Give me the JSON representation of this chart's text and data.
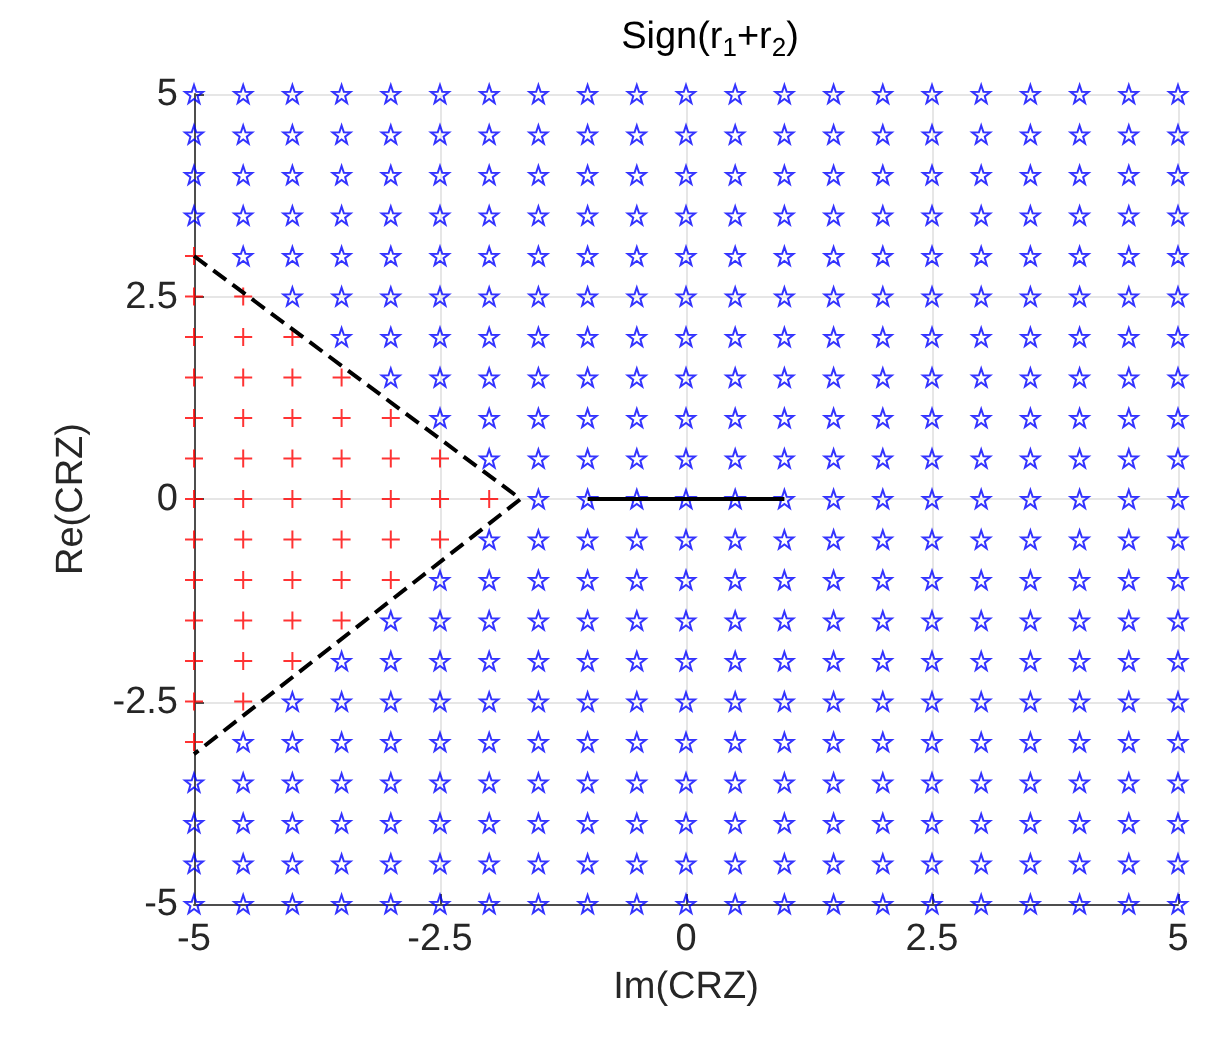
{
  "chart_data": {
    "type": "scatter",
    "title": "Sign(r$_{1}$+r$_{2}$)",
    "xlabel": "Im(CRZ)",
    "ylabel": "Re(CRZ)",
    "xlim": [
      -5,
      5
    ],
    "ylim": [
      -5,
      5
    ],
    "xticks": [
      -5,
      -2.5,
      0,
      2.5,
      5
    ],
    "yticks": [
      -5,
      -2.5,
      0,
      2.5,
      5
    ],
    "grid": true,
    "series": [
      {
        "color": "#0000ff",
        "marker": "star",
        "x": [
          -5,
          -4.5,
          -4,
          -3.5,
          -3,
          -2.5,
          -2,
          -1.5,
          -1,
          -0.5,
          0,
          0.5,
          1,
          1.5,
          2,
          2.5,
          3,
          3.5,
          4,
          4.5,
          5,
          -5,
          -4.5,
          -4,
          -3.5,
          -3,
          -2.5,
          -2,
          -1.5,
          -1,
          -0.5,
          0,
          0.5,
          1,
          1.5,
          2,
          2.5,
          3,
          3.5,
          4,
          4.5,
          5,
          -5,
          -4.5,
          -4,
          -3.5,
          -3,
          -2.5,
          -2,
          -1.5,
          -1,
          -0.5,
          0,
          0.5,
          1,
          1.5,
          2,
          2.5,
          3,
          3.5,
          4,
          4.5,
          5,
          -5,
          -4.5,
          -4,
          -3.5,
          -3,
          -2.5,
          -2,
          -1.5,
          -1,
          -0.5,
          0,
          0.5,
          1,
          1.5,
          2,
          2.5,
          3,
          3.5,
          4,
          4.5,
          5,
          -4.5,
          -4,
          -3.5,
          -3,
          -2.5,
          -2,
          -1.5,
          -1,
          -0.5,
          0,
          0.5,
          1,
          1.5,
          2,
          2.5,
          3,
          3.5,
          4,
          4.5,
          5,
          -4,
          -3.5,
          -3,
          -2.5,
          -2,
          -1.5,
          -1,
          -0.5,
          0,
          0.5,
          1,
          1.5,
          2,
          2.5,
          3,
          3.5,
          4,
          4.5,
          5,
          -3.5,
          -3,
          -2.5,
          -2,
          -1.5,
          -1,
          -0.5,
          0,
          0.5,
          1,
          1.5,
          2,
          2.5,
          3,
          3.5,
          4,
          4.5,
          5,
          -3,
          -2.5,
          -2,
          -1.5,
          -1,
          -0.5,
          0,
          0.5,
          1,
          1.5,
          2,
          2.5,
          3,
          3.5,
          4,
          4.5,
          5,
          -2.5,
          -2,
          -1.5,
          -1,
          -0.5,
          0,
          0.5,
          1,
          1.5,
          2,
          2.5,
          3,
          3.5,
          4,
          4.5,
          5,
          -2,
          -1.5,
          -1,
          -0.5,
          0,
          0.5,
          1,
          1.5,
          2,
          2.5,
          3,
          3.5,
          4,
          4.5,
          5,
          -1.5,
          -1,
          -0.5,
          0,
          0.5,
          1,
          1.5,
          2,
          2.5,
          3,
          3.5,
          4,
          4.5,
          5,
          -2,
          -1.5,
          -1,
          -0.5,
          0,
          0.5,
          1,
          1.5,
          2,
          2.5,
          3,
          3.5,
          4,
          4.5,
          5,
          -2.5,
          -2,
          -1.5,
          -1,
          -0.5,
          0,
          0.5,
          1,
          1.5,
          2,
          2.5,
          3,
          3.5,
          4,
          4.5,
          5,
          -3,
          -2.5,
          -2,
          -1.5,
          -1,
          -0.5,
          0,
          0.5,
          1,
          1.5,
          2,
          2.5,
          3,
          3.5,
          4,
          4.5,
          5,
          -3.5,
          -3,
          -2.5,
          -2,
          -1.5,
          -1,
          -0.5,
          0,
          0.5,
          1,
          1.5,
          2,
          2.5,
          3,
          3.5,
          4,
          4.5,
          5,
          -4,
          -3.5,
          -3,
          -2.5,
          -2,
          -1.5,
          -1,
          -0.5,
          0,
          0.5,
          1,
          1.5,
          2,
          2.5,
          3,
          3.5,
          4,
          4.5,
          5,
          -4.5,
          -4,
          -3.5,
          -3,
          -2.5,
          -2,
          -1.5,
          -1,
          -0.5,
          0,
          0.5,
          1,
          1.5,
          2,
          2.5,
          3,
          3.5,
          4,
          4.5,
          5,
          -5,
          -4.5,
          -4,
          -3.5,
          -3,
          -2.5,
          -2,
          -1.5,
          -1,
          -0.5,
          0,
          0.5,
          1,
          1.5,
          2,
          2.5,
          3,
          3.5,
          4,
          4.5,
          5,
          -5,
          -4.5,
          -4,
          -3.5,
          -3,
          -2.5,
          -2,
          -1.5,
          -1,
          -0.5,
          0,
          0.5,
          1,
          1.5,
          2,
          2.5,
          3,
          3.5,
          4,
          4.5,
          5,
          -5,
          -4.5,
          -4,
          -3.5,
          -3,
          -2.5,
          -2,
          -1.5,
          -1,
          -0.5,
          0,
          0.5,
          1,
          1.5,
          2,
          2.5,
          3,
          3.5,
          4,
          4.5,
          5,
          -5,
          -4.5,
          -4,
          -3.5,
          -3,
          -2.5,
          -2,
          -1.5,
          -1,
          -0.5,
          0,
          0.5,
          1,
          1.5,
          2,
          2.5,
          3,
          3.5,
          4,
          4.5,
          5
        ],
        "values": [
          5,
          5,
          5,
          5,
          5,
          5,
          5,
          5,
          5,
          5,
          5,
          5,
          5,
          5,
          5,
          5,
          5,
          5,
          5,
          5,
          5,
          4.5,
          4.5,
          4.5,
          4.5,
          4.5,
          4.5,
          4.5,
          4.5,
          4.5,
          4.5,
          4.5,
          4.5,
          4.5,
          4.5,
          4.5,
          4.5,
          4.5,
          4.5,
          4.5,
          4.5,
          4.5,
          4,
          4,
          4,
          4,
          4,
          4,
          4,
          4,
          4,
          4,
          4,
          4,
          4,
          4,
          4,
          4,
          4,
          4,
          4,
          4,
          4,
          3.5,
          3.5,
          3.5,
          3.5,
          3.5,
          3.5,
          3.5,
          3.5,
          3.5,
          3.5,
          3.5,
          3.5,
          3.5,
          3.5,
          3.5,
          3.5,
          3.5,
          3.5,
          3.5,
          3.5,
          3.5,
          3,
          3,
          3,
          3,
          3,
          3,
          3,
          3,
          3,
          3,
          3,
          3,
          3,
          3,
          3,
          3,
          3,
          3,
          3,
          3,
          2.5,
          2.5,
          2.5,
          2.5,
          2.5,
          2.5,
          2.5,
          2.5,
          2.5,
          2.5,
          2.5,
          2.5,
          2.5,
          2.5,
          2.5,
          2.5,
          2.5,
          2.5,
          2.5,
          2,
          2,
          2,
          2,
          2,
          2,
          2,
          2,
          2,
          2,
          2,
          2,
          2,
          2,
          2,
          2,
          2,
          2,
          1.5,
          1.5,
          1.5,
          1.5,
          1.5,
          1.5,
          1.5,
          1.5,
          1.5,
          1.5,
          1.5,
          1.5,
          1.5,
          1.5,
          1.5,
          1.5,
          1.5,
          1,
          1,
          1,
          1,
          1,
          1,
          1,
          1,
          1,
          1,
          1,
          1,
          1,
          1,
          1,
          1,
          0.5,
          0.5,
          0.5,
          0.5,
          0.5,
          0.5,
          0.5,
          0.5,
          0.5,
          0.5,
          0.5,
          0.5,
          0.5,
          0.5,
          0.5,
          0,
          0,
          0,
          0,
          0,
          0,
          0,
          0,
          0,
          0,
          0,
          0,
          0,
          0,
          -0.5,
          -0.5,
          -0.5,
          -0.5,
          -0.5,
          -0.5,
          -0.5,
          -0.5,
          -0.5,
          -0.5,
          -0.5,
          -0.5,
          -0.5,
          -0.5,
          -0.5,
          -1,
          -1,
          -1,
          -1,
          -1,
          -1,
          -1,
          -1,
          -1,
          -1,
          -1,
          -1,
          -1,
          -1,
          -1,
          -1,
          -1.5,
          -1.5,
          -1.5,
          -1.5,
          -1.5,
          -1.5,
          -1.5,
          -1.5,
          -1.5,
          -1.5,
          -1.5,
          -1.5,
          -1.5,
          -1.5,
          -1.5,
          -1.5,
          -1.5,
          -2,
          -2,
          -2,
          -2,
          -2,
          -2,
          -2,
          -2,
          -2,
          -2,
          -2,
          -2,
          -2,
          -2,
          -2,
          -2,
          -2,
          -2,
          -2.5,
          -2.5,
          -2.5,
          -2.5,
          -2.5,
          -2.5,
          -2.5,
          -2.5,
          -2.5,
          -2.5,
          -2.5,
          -2.5,
          -2.5,
          -2.5,
          -2.5,
          -2.5,
          -2.5,
          -2.5,
          -2.5,
          -3,
          -3,
          -3,
          -3,
          -3,
          -3,
          -3,
          -3,
          -3,
          -3,
          -3,
          -3,
          -3,
          -3,
          -3,
          -3,
          -3,
          -3,
          -3,
          -3,
          -3.5,
          -3.5,
          -3.5,
          -3.5,
          -3.5,
          -3.5,
          -3.5,
          -3.5,
          -3.5,
          -3.5,
          -3.5,
          -3.5,
          -3.5,
          -3.5,
          -3.5,
          -3.5,
          -3.5,
          -3.5,
          -3.5,
          -3.5,
          -3.5,
          -4,
          -4,
          -4,
          -4,
          -4,
          -4,
          -4,
          -4,
          -4,
          -4,
          -4,
          -4,
          -4,
          -4,
          -4,
          -4,
          -4,
          -4,
          -4,
          -4,
          -4,
          -4.5,
          -4.5,
          -4.5,
          -4.5,
          -4.5,
          -4.5,
          -4.5,
          -4.5,
          -4.5,
          -4.5,
          -4.5,
          -4.5,
          -4.5,
          -4.5,
          -4.5,
          -4.5,
          -4.5,
          -4.5,
          -4.5,
          -4.5,
          -4.5,
          -5,
          -5,
          -5,
          -5,
          -5,
          -5,
          -5,
          -5,
          -5,
          -5,
          -5,
          -5,
          -5,
          -5,
          -5,
          -5,
          -5,
          -5,
          -5,
          -5,
          -5
        ]
      },
      {
        "color": "#ff0000",
        "marker": "cross",
        "x": [
          -5,
          -5,
          -4.5,
          -5,
          -4.5,
          -4,
          -5,
          -4.5,
          -4,
          -3.5,
          -5,
          -4.5,
          -4,
          -3.5,
          -3,
          -5,
          -4.5,
          -4,
          -3.5,
          -3,
          -2.5,
          -5,
          -4.5,
          -4,
          -3.5,
          -3,
          -2.5,
          -2,
          -5,
          -4.5,
          -4,
          -3.5,
          -3,
          -2.5,
          -5,
          -4.5,
          -4,
          -3.5,
          -3,
          -5,
          -4.5,
          -4,
          -3.5,
          -5,
          -4.5,
          -4,
          -5,
          -4.5,
          -5
        ],
        "values": [
          3,
          2.5,
          2.5,
          2,
          2,
          2,
          1.5,
          1.5,
          1.5,
          1.5,
          1,
          1,
          1,
          1,
          1,
          0.5,
          0.5,
          0.5,
          0.5,
          0.5,
          0.5,
          0,
          0,
          0,
          0,
          0,
          0,
          0,
          -0.5,
          -0.5,
          -0.5,
          -0.5,
          -0.5,
          -0.5,
          -1,
          -1,
          -1,
          -1,
          -1,
          -1.5,
          -1.5,
          -1.5,
          -1.5,
          -2,
          -2,
          -2,
          -2.5,
          -2.5,
          -3
        ]
      },
      {
        "type": "line",
        "color": "#000000",
        "line_style": "dashed",
        "marker": "none",
        "x": [
          -5,
          -1.68,
          -5
        ],
        "values": [
          3,
          0,
          -3.15
        ]
      },
      {
        "type": "line",
        "color": "#000000",
        "line_style": "solid",
        "marker": "none",
        "x": [
          -1,
          1
        ],
        "values": [
          0,
          0
        ]
      }
    ]
  }
}
